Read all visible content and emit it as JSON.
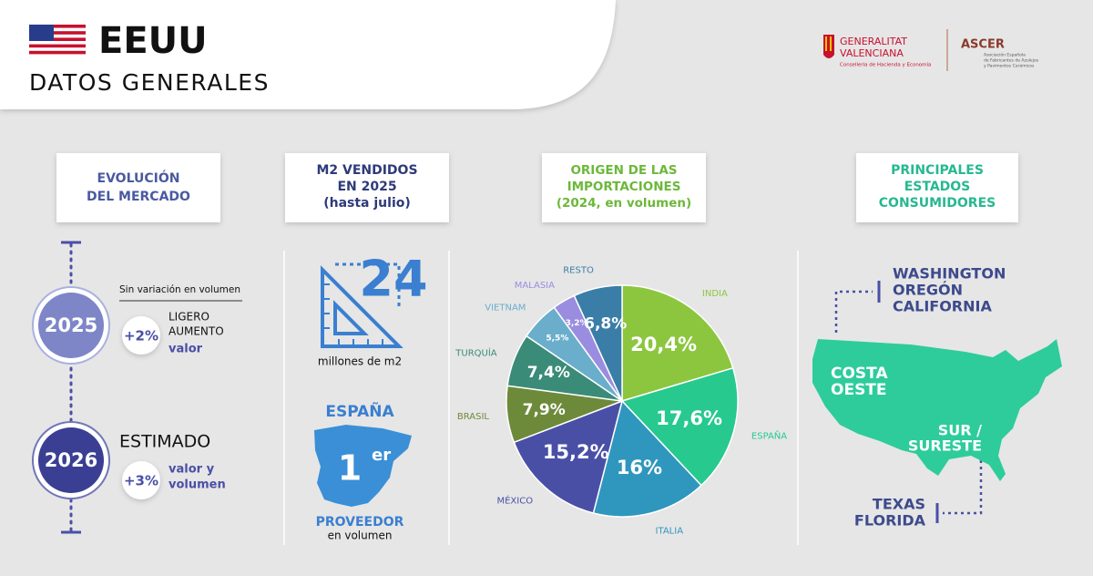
{
  "header": {
    "title": "EEUU",
    "subtitle": "DATOS GENERALES"
  },
  "logos": {
    "generalitat": [
      "GENERALITAT",
      "VALENCIANA"
    ],
    "conselleria": "Conselleria de Hacienda y Economía",
    "ascer": "ASCER",
    "ascer_full": [
      "Asociación Española",
      "de Fabricantes de Azulejos",
      "y Pavimentos Cerámicos"
    ]
  },
  "market": {
    "title": [
      "EVOLUCIÓN",
      "DEL MERCADO"
    ],
    "y2025": {
      "year": "2025",
      "note": "Sin variación en volumen",
      "change": "+2%",
      "detail": [
        "LIGERO",
        "AUMENTO"
      ],
      "measure": "valor"
    },
    "y2026": {
      "year": "2026",
      "note": "ESTIMADO",
      "change": "+3%",
      "measure": [
        "valor y",
        "volumen"
      ]
    }
  },
  "sold": {
    "title": [
      "M2 VENDIDOS",
      "EN 2025",
      "(hasta julio)"
    ],
    "amount": "24",
    "unit": "millones de m2",
    "country": "ESPAÑA",
    "rank": "1",
    "rank_suffix": "er",
    "role": "PROVEEDOR",
    "role_note": "en volumen"
  },
  "chart_data": {
    "type": "pie",
    "title": [
      "ORIGEN DE LAS",
      "IMPORTACIONES",
      "(2024, en volumen)"
    ],
    "categories": [
      "INDIA",
      "ESPAÑA",
      "ITALIA",
      "MÉXICO",
      "BRASIL",
      "TURQUÍA",
      "VIETNAM",
      "MALASIA",
      "RESTO"
    ],
    "values": [
      20.4,
      17.6,
      16,
      15.2,
      7.9,
      7.4,
      5.5,
      3.2,
      6.8
    ],
    "value_labels": [
      "20,4%",
      "17,6%",
      "16%",
      "15,2%",
      "7,9%",
      "7,4%",
      "5,5%",
      "3,2%",
      "6,8%"
    ],
    "colors": [
      "#8cc63f",
      "#27c98e",
      "#2f97bd",
      "#4a4fa6",
      "#6d8a3a",
      "#3a8c78",
      "#6aaecb",
      "#9a8de0",
      "#3a7ea8"
    ]
  },
  "states": {
    "title": [
      "PRINCIPALES",
      "ESTADOS",
      "CONSUMIDORES"
    ],
    "west_states": [
      "WASHINGTON",
      "OREGÓN",
      "CALIFORNIA"
    ],
    "west_region": [
      "COSTA",
      "OESTE"
    ],
    "south_region": [
      "SUR /",
      "SURESTE"
    ],
    "south_states": [
      "TEXAS",
      "FLORIDA"
    ]
  }
}
